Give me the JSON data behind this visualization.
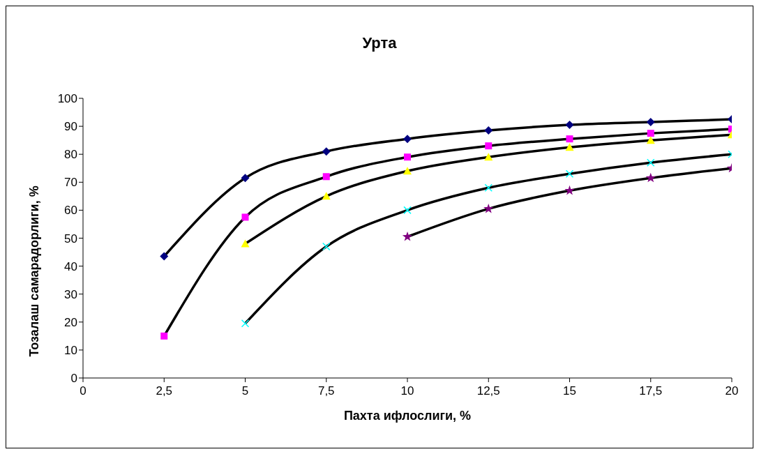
{
  "chart_data": {
    "type": "line",
    "title": "Урта",
    "xlabel": "Пахта ифлослиги, %",
    "ylabel": "Тозалаш самарадорлиги, %",
    "x": [
      2.5,
      5,
      7.5,
      10,
      12.5,
      15,
      17.5,
      20
    ],
    "series": [
      {
        "color": "#000080",
        "marker": "diamond",
        "values": [
          43.5,
          71.5,
          81,
          85.5,
          88.5,
          90.5,
          91.5,
          92.5
        ]
      },
      {
        "color": "#ff00ff",
        "marker": "square",
        "values": [
          15,
          57.5,
          72,
          79,
          83,
          85.5,
          87.5,
          89
        ]
      },
      {
        "color": "#ffff00",
        "marker": "triangle",
        "values": [
          null,
          48,
          65,
          74,
          79,
          82.5,
          85,
          87
        ]
      },
      {
        "color": "#00ffff",
        "marker": "cross",
        "values": [
          null,
          19.5,
          47,
          60,
          68,
          73,
          77,
          80
        ]
      },
      {
        "color": "#800080",
        "marker": "star",
        "values": [
          null,
          null,
          null,
          50.5,
          60.5,
          67,
          71.5,
          75
        ]
      }
    ],
    "xlim": [
      0,
      20
    ],
    "xticks": [
      0,
      {
        "value": 2.5,
        "label": "2,5"
      },
      5,
      {
        "value": 7.5,
        "label": "7,5"
      },
      10,
      {
        "value": 12.5,
        "label": "12,5"
      },
      15,
      {
        "value": 17.5,
        "label": "17,5"
      },
      20
    ],
    "ylim": [
      0,
      100
    ],
    "yticks": [
      0,
      10,
      20,
      30,
      40,
      50,
      60,
      70,
      80,
      90,
      100
    ],
    "grid": false,
    "legend": false,
    "line_style": "solid"
  }
}
